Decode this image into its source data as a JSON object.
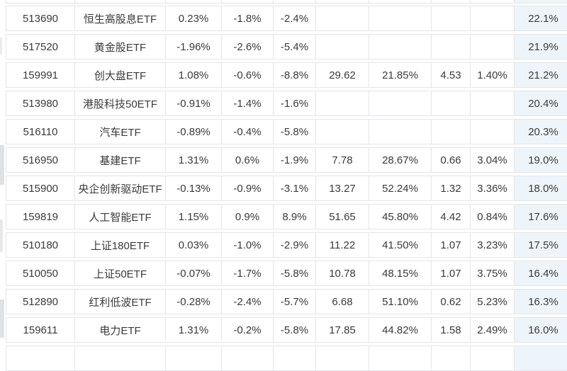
{
  "page": {
    "background": "#ffffff"
  },
  "table": {
    "border_color": "#e3e5e7",
    "text_color": "#3a3a3a",
    "highlight_column_bg": "#eef5fa",
    "rows": [
      [
        "513690",
        "恒生高股息ETF",
        "0.23%",
        "-1.8%",
        "-2.4%",
        "",
        "",
        "",
        "",
        "22.1%"
      ],
      [
        "517520",
        "黄金股ETF",
        "-1.96%",
        "-2.6%",
        "-5.4%",
        "",
        "",
        "",
        "",
        "21.9%"
      ],
      [
        "159991",
        "创大盘ETF",
        "1.08%",
        "-0.6%",
        "-8.8%",
        "29.62",
        "21.85%",
        "4.53",
        "1.40%",
        "21.2%"
      ],
      [
        "513980",
        "港股科技50ETF",
        "-0.91%",
        "-1.4%",
        "-1.6%",
        "",
        "",
        "",
        "",
        "20.4%"
      ],
      [
        "516110",
        "汽车ETF",
        "-0.89%",
        "-0.4%",
        "-5.8%",
        "",
        "",
        "",
        "",
        "20.3%"
      ],
      [
        "516950",
        "基建ETF",
        "1.31%",
        "0.6%",
        "-1.9%",
        "7.78",
        "28.67%",
        "0.66",
        "3.04%",
        "19.0%"
      ],
      [
        "515900",
        "央企创新驱动ETF",
        "-0.13%",
        "-0.9%",
        "-3.1%",
        "13.27",
        "52.24%",
        "1.32",
        "3.36%",
        "18.0%"
      ],
      [
        "159819",
        "人工智能ETF",
        "1.15%",
        "0.9%",
        "8.9%",
        "51.65",
        "45.80%",
        "4.42",
        "0.84%",
        "17.6%"
      ],
      [
        "510180",
        "上证180ETF",
        "0.03%",
        "-1.0%",
        "-2.9%",
        "11.22",
        "41.50%",
        "1.07",
        "3.23%",
        "17.5%"
      ],
      [
        "510050",
        "上证50ETF",
        "-0.07%",
        "-1.7%",
        "-5.8%",
        "10.78",
        "48.15%",
        "1.07",
        "3.75%",
        "16.4%"
      ],
      [
        "512890",
        "红利低波ETF",
        "-0.28%",
        "-2.4%",
        "-5.7%",
        "6.68",
        "51.10%",
        "0.62",
        "5.23%",
        "16.3%"
      ],
      [
        "159611",
        "电力ETF",
        "1.31%",
        "-0.2%",
        "-5.8%",
        "17.85",
        "44.82%",
        "1.58",
        "2.49%",
        "16.0%"
      ]
    ]
  }
}
